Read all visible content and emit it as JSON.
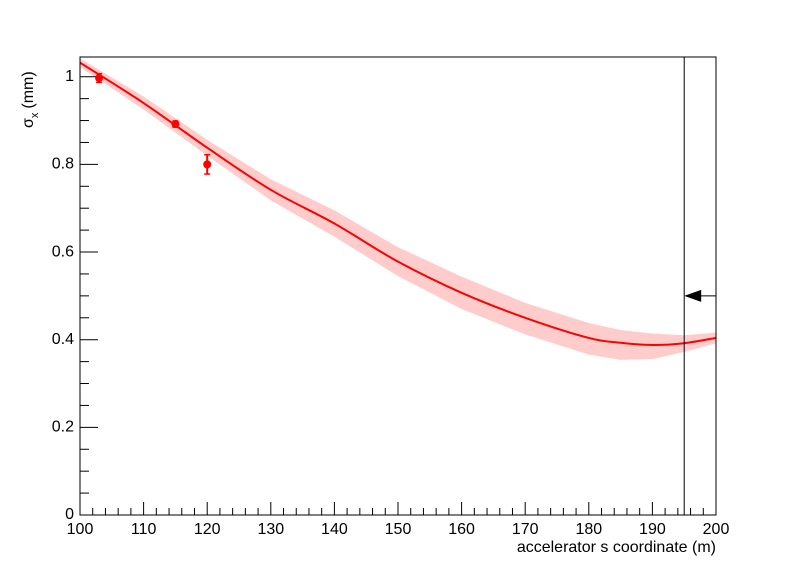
{
  "chart_data": {
    "type": "line",
    "xlabel": "accelerator s coordinate (m)",
    "ylabel": {
      "main": "σ",
      "sub": "x",
      "unit": "(mm)"
    },
    "xlim": [
      100,
      200
    ],
    "ylim": [
      0,
      1.045
    ],
    "xticks": [
      100,
      110,
      120,
      130,
      140,
      150,
      160,
      170,
      180,
      190,
      200
    ],
    "yticks": [
      0,
      0.2,
      0.4,
      0.6,
      0.8,
      1
    ],
    "xminorticks": [
      102,
      104,
      106,
      108,
      112,
      114,
      116,
      118,
      122,
      124,
      126,
      128,
      132,
      134,
      136,
      138,
      142,
      144,
      146,
      148,
      152,
      154,
      156,
      158,
      162,
      164,
      166,
      168,
      172,
      174,
      176,
      178,
      182,
      184,
      186,
      188,
      192,
      194,
      196,
      198
    ],
    "yminorticks": [
      0.05,
      0.1,
      0.15,
      0.25,
      0.3,
      0.35,
      0.45,
      0.5,
      0.55,
      0.65,
      0.7,
      0.75,
      0.85,
      0.9,
      0.95
    ],
    "curve": {
      "color": "#ff0000",
      "band_color": "#ffcccc",
      "x": [
        100,
        110,
        120,
        130,
        140,
        150,
        160,
        170,
        180,
        185,
        190,
        195,
        200
      ],
      "values": [
        1.032,
        0.94,
        0.838,
        0.742,
        0.665,
        0.578,
        0.507,
        0.45,
        0.404,
        0.393,
        0.388,
        0.392,
        0.404
      ],
      "lower": [
        1.022,
        0.925,
        0.82,
        0.718,
        0.635,
        0.545,
        0.47,
        0.412,
        0.366,
        0.354,
        0.356,
        0.372,
        0.392
      ],
      "upper": [
        1.042,
        0.955,
        0.856,
        0.766,
        0.695,
        0.611,
        0.544,
        0.484,
        0.438,
        0.422,
        0.414,
        0.41,
        0.416
      ]
    },
    "points": {
      "color": "#ff0000",
      "x": [
        103,
        115,
        120
      ],
      "values": [
        0.997,
        0.892,
        0.8
      ],
      "errors": [
        0.01,
        0.007,
        0.022
      ]
    },
    "marker": {
      "x": 195,
      "y": 0.5
    }
  }
}
